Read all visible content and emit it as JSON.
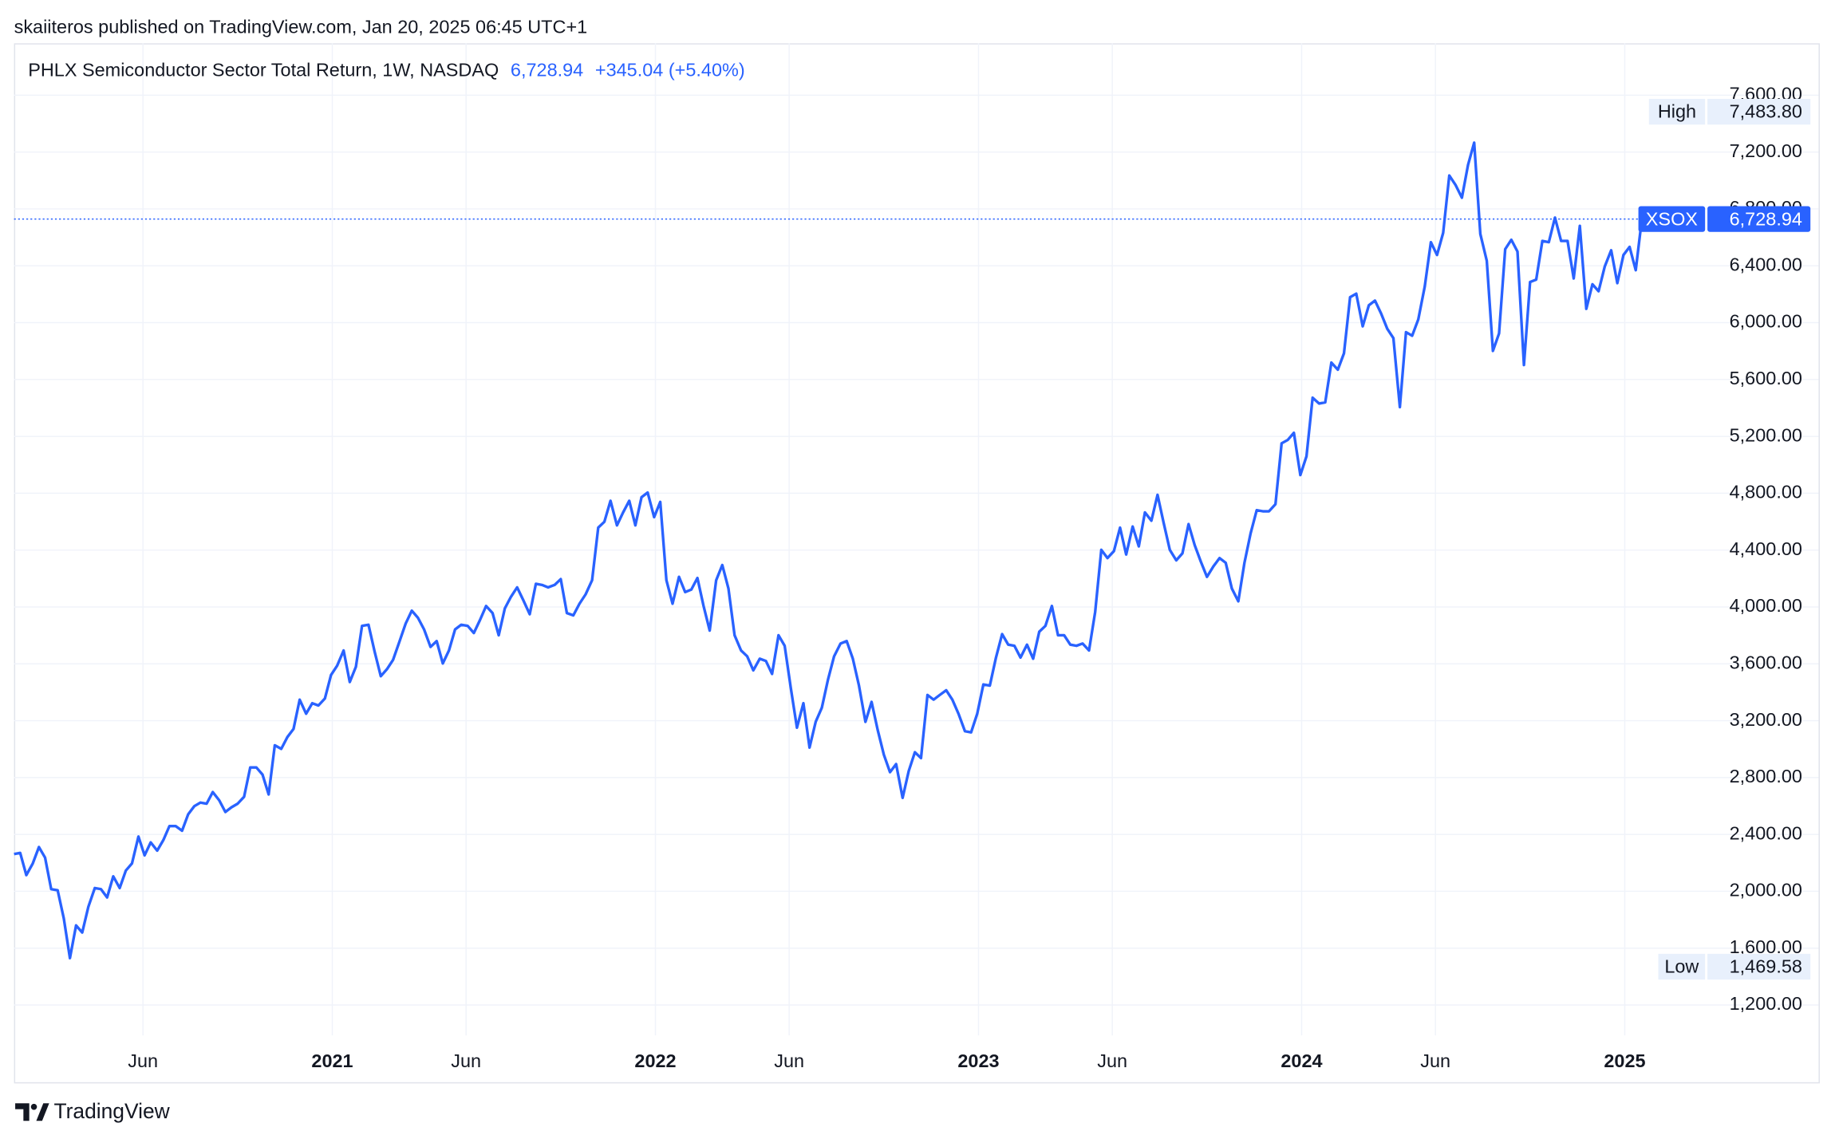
{
  "header": "skaiiteros published on TradingView.com, Jan 20, 2025 06:45 UTC+1",
  "footer_brand": "TradingView",
  "chart_data": {
    "type": "line",
    "title": "PHLX Semiconductor Sector Total Return, 1W, NASDAQ",
    "last": {
      "value": 6728.94,
      "label": "6,728.94"
    },
    "change": "+345.04 (+5.40%)",
    "high": {
      "name": "High",
      "value": 7483.8,
      "label": "7,483.80"
    },
    "low": {
      "name": "Low",
      "value": 1469.58,
      "label": "1,469.58"
    },
    "x": [
      2020.015,
      2020.034,
      2020.053,
      2020.073,
      2020.092,
      2020.111,
      2020.13,
      2020.15,
      2020.169,
      2020.188,
      2020.207,
      2020.226,
      2020.245,
      2020.265,
      2020.284,
      2020.303,
      2020.322,
      2020.342,
      2020.361,
      2020.38,
      2020.4,
      2020.419,
      2020.438,
      2020.458,
      2020.477,
      2020.496,
      2020.515,
      2020.535,
      2020.554,
      2020.573,
      2020.592,
      2020.611,
      2020.63,
      2020.65,
      2020.669,
      2020.688,
      2020.707,
      2020.727,
      2020.746,
      2020.765,
      2020.784,
      2020.803,
      2020.822,
      2020.842,
      2020.861,
      2020.88,
      2020.899,
      2020.919,
      2020.938,
      2020.957,
      2020.977,
      2020.996,
      2021.015,
      2021.035,
      2021.054,
      2021.073,
      2021.092,
      2021.112,
      2021.131,
      2021.15,
      2021.169,
      2021.188,
      2021.207,
      2021.227,
      2021.246,
      2021.265,
      2021.284,
      2021.304,
      2021.323,
      2021.342,
      2021.361,
      2021.38,
      2021.399,
      2021.419,
      2021.438,
      2021.457,
      2021.476,
      2021.496,
      2021.515,
      2021.534,
      2021.553,
      2021.572,
      2021.591,
      2021.611,
      2021.63,
      2021.649,
      2021.668,
      2021.688,
      2021.707,
      2021.726,
      2021.746,
      2021.765,
      2021.784,
      2021.804,
      2021.823,
      2021.842,
      2021.861,
      2021.881,
      2021.9,
      2021.919,
      2021.938,
      2021.957,
      2021.976,
      2021.996,
      2022.015,
      2022.034,
      2022.053,
      2022.073,
      2022.092,
      2022.111,
      2022.13,
      2022.149,
      2022.168,
      2022.188,
      2022.207,
      2022.226,
      2022.245,
      2022.265,
      2022.284,
      2022.303,
      2022.323,
      2022.342,
      2022.361,
      2022.381,
      2022.4,
      2022.419,
      2022.438,
      2022.458,
      2022.477,
      2022.496,
      2022.515,
      2022.534,
      2022.553,
      2022.573,
      2022.592,
      2022.611,
      2022.63,
      2022.65,
      2022.669,
      2022.688,
      2022.707,
      2022.726,
      2022.745,
      2022.765,
      2022.784,
      2022.803,
      2022.822,
      2022.842,
      2022.861,
      2022.88,
      2022.9,
      2022.919,
      2022.938,
      2022.958,
      2022.977,
      2022.996,
      2023.015,
      2023.035,
      2023.054,
      2023.073,
      2023.092,
      2023.111,
      2023.13,
      2023.15,
      2023.169,
      2023.188,
      2023.207,
      2023.227,
      2023.246,
      2023.265,
      2023.284,
      2023.303,
      2023.322,
      2023.342,
      2023.361,
      2023.38,
      2023.399,
      2023.419,
      2023.438,
      2023.457,
      2023.477,
      2023.496,
      2023.515,
      2023.535,
      2023.554,
      2023.573,
      2023.592,
      2023.612,
      2023.631,
      2023.65,
      2023.669,
      2023.688,
      2023.707,
      2023.727,
      2023.746,
      2023.765,
      2023.784,
      2023.804,
      2023.823,
      2023.842,
      2023.861,
      2023.88,
      2023.899,
      2023.919,
      2023.938,
      2023.957,
      2023.976,
      2023.996,
      2024.015,
      2024.034,
      2024.054,
      2024.073,
      2024.092,
      2024.112,
      2024.131,
      2024.15,
      2024.169,
      2024.189,
      2024.208,
      2024.227,
      2024.246,
      2024.265,
      2024.284,
      2024.304,
      2024.323,
      2024.342,
      2024.361,
      2024.381,
      2024.4,
      2024.419,
      2024.438,
      2024.457,
      2024.476,
      2024.496,
      2024.515,
      2024.534,
      2024.553,
      2024.573,
      2024.592,
      2024.611,
      2024.63,
      2024.649,
      2024.668,
      2024.688,
      2024.707,
      2024.726,
      2024.745,
      2024.765,
      2024.784,
      2024.803,
      2024.823,
      2024.842,
      2024.861,
      2024.881,
      2024.9,
      2024.919,
      2024.938,
      2024.958,
      2024.977,
      2024.996,
      2025.015,
      2025.034,
      2025.053
    ],
    "series": [
      {
        "name": "XSOX",
        "color": "#2962ff",
        "values": [
          2262,
          2270,
          2114,
          2196,
          2311,
          2237,
          2015,
          2007,
          1809,
          1530,
          1760,
          1710,
          1891,
          2023,
          2015,
          1957,
          2105,
          2023,
          2146,
          2196,
          2385,
          2253,
          2344,
          2286,
          2360,
          2459,
          2459,
          2426,
          2542,
          2599,
          2624,
          2616,
          2698,
          2640,
          2558,
          2591,
          2616,
          2665,
          2871,
          2871,
          2821,
          2681,
          3027,
          3002,
          3085,
          3142,
          3348,
          3249,
          3323,
          3307,
          3356,
          3521,
          3587,
          3694,
          3472,
          3579,
          3867,
          3875,
          3686,
          3513,
          3562,
          3628,
          3751,
          3883,
          3974,
          3924,
          3842,
          3719,
          3760,
          3603,
          3694,
          3842,
          3875,
          3867,
          3817,
          3908,
          4007,
          3957,
          3801,
          3990,
          4072,
          4138,
          4048,
          3949,
          4163,
          4155,
          4138,
          4155,
          4196,
          3957,
          3941,
          4023,
          4089,
          4188,
          4558,
          4599,
          4747,
          4574,
          4665,
          4747,
          4574,
          4772,
          4805,
          4632,
          4739,
          4188,
          4023,
          4212,
          4105,
          4122,
          4204,
          4007,
          3834,
          4188,
          4295,
          4130,
          3801,
          3694,
          3653,
          3554,
          3636,
          3620,
          3529,
          3801,
          3727,
          3430,
          3151,
          3323,
          3011,
          3192,
          3291,
          3488,
          3653,
          3743,
          3760,
          3636,
          3447,
          3192,
          3332,
          3134,
          2961,
          2838,
          2895,
          2657,
          2846,
          2978,
          2937,
          3381,
          3348,
          3381,
          3414,
          3348,
          3249,
          3126,
          3118,
          3249,
          3455,
          3447,
          3644,
          3809,
          3735,
          3727,
          3644,
          3735,
          3636,
          3826,
          3867,
          4007,
          3801,
          3801,
          3735,
          3727,
          3743,
          3694,
          3965,
          4402,
          4344,
          4393,
          4558,
          4369,
          4566,
          4426,
          4665,
          4607,
          4789,
          4591,
          4402,
          4328,
          4377,
          4583,
          4435,
          4319,
          4212,
          4286,
          4344,
          4311,
          4130,
          4040,
          4311,
          4517,
          4681,
          4673,
          4673,
          4723,
          5151,
          5175,
          5225,
          4928,
          5060,
          5472,
          5431,
          5439,
          5719,
          5669,
          5784,
          6179,
          6204,
          5974,
          6122,
          6155,
          6064,
          5957,
          5891,
          5406,
          5933,
          5908,
          6023,
          6254,
          6566,
          6476,
          6632,
          7035,
          6970,
          6879,
          7110,
          7266,
          6624,
          6435,
          5801,
          5924,
          6517,
          6583,
          6500,
          5702,
          6286,
          6303,
          6575,
          6566,
          6739,
          6575,
          6575,
          6311,
          6681,
          6097,
          6270,
          6221,
          6394,
          6509,
          6278,
          6476,
          6533,
          6369,
          6728.94
        ]
      }
    ],
    "xlim": [
      2020.015,
      2025.6
    ],
    "xticks": [
      {
        "value": 2020.414,
        "label": "Jun"
      },
      {
        "value": 2021,
        "label": "2021"
      },
      {
        "value": 2021.414,
        "label": "Jun"
      },
      {
        "value": 2022,
        "label": "2022"
      },
      {
        "value": 2022.414,
        "label": "Jun"
      },
      {
        "value": 2023,
        "label": "2023"
      },
      {
        "value": 2023.414,
        "label": "Jun"
      },
      {
        "value": 2024,
        "label": "2024"
      },
      {
        "value": 2024.414,
        "label": "Jun"
      },
      {
        "value": 2025,
        "label": "2025"
      }
    ],
    "ylim": [
      986,
      7965
    ],
    "yticks": [
      {
        "value": 1200,
        "label": "1,200.00"
      },
      {
        "value": 1600,
        "label": "1,600.00"
      },
      {
        "value": 2000,
        "label": "2,000.00"
      },
      {
        "value": 2400,
        "label": "2,400.00"
      },
      {
        "value": 2800,
        "label": "2,800.00"
      },
      {
        "value": 3200,
        "label": "3,200.00"
      },
      {
        "value": 3600,
        "label": "3,600.00"
      },
      {
        "value": 4000,
        "label": "4,000.00"
      },
      {
        "value": 4400,
        "label": "4,400.00"
      },
      {
        "value": 4800,
        "label": "4,800.00"
      },
      {
        "value": 5200,
        "label": "5,200.00"
      },
      {
        "value": 5600,
        "label": "5,600.00"
      },
      {
        "value": 6000,
        "label": "6,000.00"
      },
      {
        "value": 6400,
        "label": "6,400.00"
      },
      {
        "value": 6800,
        "label": "6,800.00"
      },
      {
        "value": 7200,
        "label": "7,200.00"
      },
      {
        "value": 7600,
        "label": "7,600.00"
      }
    ],
    "grid": true
  }
}
